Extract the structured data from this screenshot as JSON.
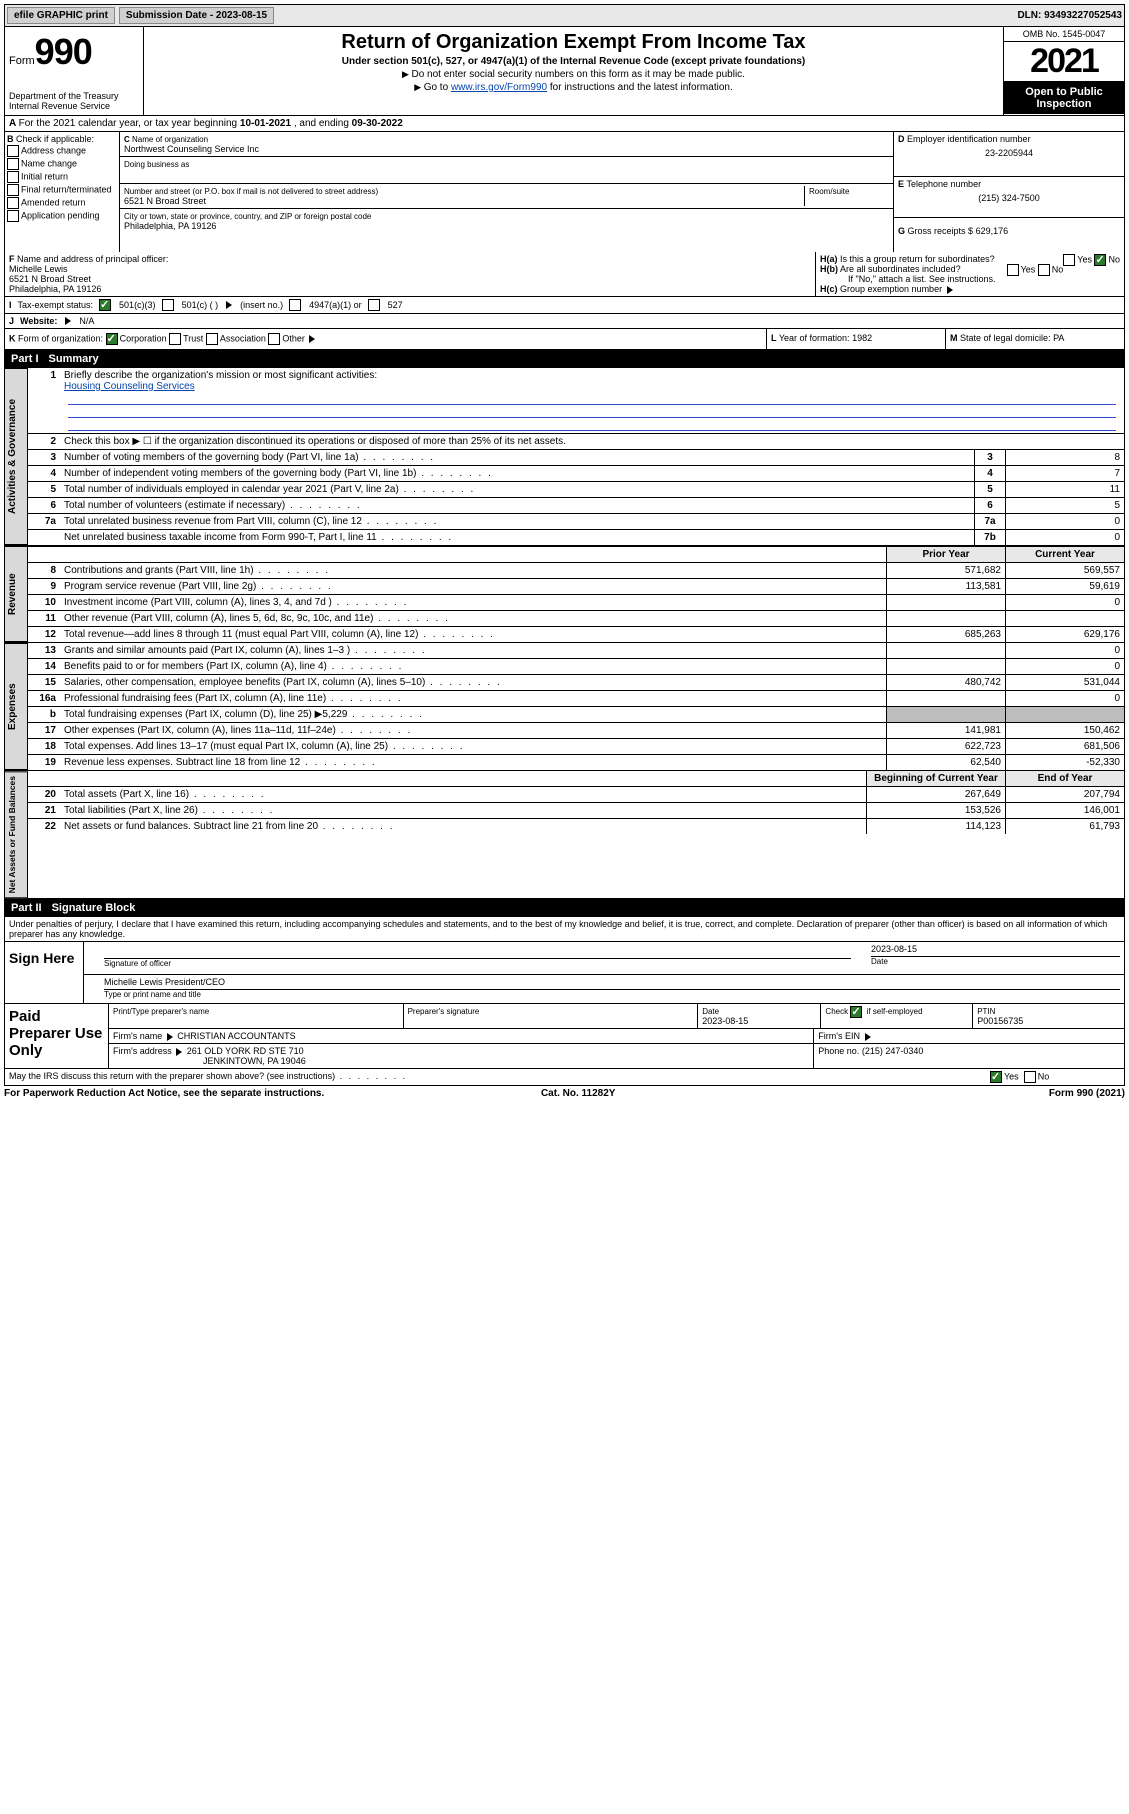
{
  "topbar": {
    "efile": "efile GRAPHIC print",
    "submission_label": "Submission Date - ",
    "submission_date": "2023-08-15",
    "dln_label": "DLN: ",
    "dln": "93493227052543"
  },
  "header": {
    "form_word": "Form",
    "form_num": "990",
    "dept": "Department of the Treasury\nInternal Revenue Service",
    "title": "Return of Organization Exempt From Income Tax",
    "sub": "Under section 501(c), 527, or 4947(a)(1) of the Internal Revenue Code (except private foundations)",
    "note1": "Do not enter social security numbers on this form as it may be made public.",
    "note2_pre": "Go to ",
    "note2_link": "www.irs.gov/Form990",
    "note2_post": " for instructions and the latest information.",
    "omb": "OMB No. 1545-0047",
    "year": "2021",
    "inspect": "Open to Public Inspection"
  },
  "A": {
    "text_pre": "For the 2021 calendar year, or tax year beginning ",
    "begin": "10-01-2021",
    "mid": " , and ending ",
    "end": "09-30-2022"
  },
  "B": {
    "label": "Check if applicable:",
    "opts": [
      "Address change",
      "Name change",
      "Initial return",
      "Final return/terminated",
      "Amended return",
      "Application pending"
    ]
  },
  "C": {
    "name_label": "Name of organization",
    "name": "Northwest Counseling Service Inc",
    "dba_label": "Doing business as",
    "dba": "",
    "street_label": "Number and street (or P.O. box if mail is not delivered to street address)",
    "room_label": "Room/suite",
    "street": "6521 N Broad Street",
    "city_label": "City or town, state or province, country, and ZIP or foreign postal code",
    "city": "Philadelphia, PA  19126"
  },
  "D": {
    "label": "Employer identification number",
    "value": "23-2205944"
  },
  "E": {
    "label": "Telephone number",
    "value": "(215) 324-7500"
  },
  "G": {
    "label": "Gross receipts $",
    "value": "629,176"
  },
  "F": {
    "label": "Name and address of principal officer:",
    "name": "Michelle Lewis",
    "addr1": "6521 N Broad Street",
    "addr2": "Philadelphia, PA  19126"
  },
  "H": {
    "a": "Is this a group return for subordinates?",
    "a_yes": "Yes",
    "a_no": "No",
    "a_checked": "No",
    "b": "Are all subordinates included?",
    "b_note": "If \"No,\" attach a list. See instructions.",
    "c": "Group exemption number"
  },
  "I": {
    "label": "Tax-exempt status:",
    "o1": "501(c)(3)",
    "o2": "501(c) (   )",
    "o2b": "(insert no.)",
    "o3": "4947(a)(1) or",
    "o4": "527"
  },
  "J": {
    "label": "Website:",
    "value": "N/A"
  },
  "K": {
    "label": "Form of organization:",
    "o1": "Corporation",
    "o2": "Trust",
    "o3": "Association",
    "o4": "Other"
  },
  "L": {
    "label": "Year of formation:",
    "value": "1982"
  },
  "M": {
    "label": "State of legal domicile:",
    "value": "PA"
  },
  "part1": {
    "bar_label": "Part I",
    "bar_title": "Summary",
    "l1_label": "Briefly describe the organization's mission or most significant activities:",
    "l1_text": "Housing Counseling Services",
    "l2": "Check this box ▶ ☐  if the organization discontinued its operations or disposed of more than 25% of its net assets.",
    "rows_gov": [
      {
        "n": "3",
        "t": "Number of voting members of the governing body (Part VI, line 1a)",
        "box": "3",
        "v": "8"
      },
      {
        "n": "4",
        "t": "Number of independent voting members of the governing body (Part VI, line 1b)",
        "box": "4",
        "v": "7"
      },
      {
        "n": "5",
        "t": "Total number of individuals employed in calendar year 2021 (Part V, line 2a)",
        "box": "5",
        "v": "11"
      },
      {
        "n": "6",
        "t": "Total number of volunteers (estimate if necessary)",
        "box": "6",
        "v": "5"
      },
      {
        "n": "7a",
        "t": "Total unrelated business revenue from Part VIII, column (C), line 12",
        "box": "7a",
        "v": "0"
      },
      {
        "n": "",
        "t": "Net unrelated business taxable income from Form 990-T, Part I, line 11",
        "box": "7b",
        "v": "0"
      }
    ],
    "col_prior": "Prior Year",
    "col_curr": "Current Year",
    "rows_rev": [
      {
        "n": "8",
        "t": "Contributions and grants (Part VIII, line 1h)",
        "p": "571,682",
        "c": "569,557"
      },
      {
        "n": "9",
        "t": "Program service revenue (Part VIII, line 2g)",
        "p": "113,581",
        "c": "59,619"
      },
      {
        "n": "10",
        "t": "Investment income (Part VIII, column (A), lines 3, 4, and 7d )",
        "p": "",
        "c": "0"
      },
      {
        "n": "11",
        "t": "Other revenue (Part VIII, column (A), lines 5, 6d, 8c, 9c, 10c, and 11e)",
        "p": "",
        "c": ""
      },
      {
        "n": "12",
        "t": "Total revenue—add lines 8 through 11 (must equal Part VIII, column (A), line 12)",
        "p": "685,263",
        "c": "629,176"
      }
    ],
    "rows_exp": [
      {
        "n": "13",
        "t": "Grants and similar amounts paid (Part IX, column (A), lines 1–3 )",
        "p": "",
        "c": "0"
      },
      {
        "n": "14",
        "t": "Benefits paid to or for members (Part IX, column (A), line 4)",
        "p": "",
        "c": "0"
      },
      {
        "n": "15",
        "t": "Salaries, other compensation, employee benefits (Part IX, column (A), lines 5–10)",
        "p": "480,742",
        "c": "531,044"
      },
      {
        "n": "16a",
        "t": "Professional fundraising fees (Part IX, column (A), line 11e)",
        "p": "",
        "c": "0"
      },
      {
        "n": "b",
        "t": "Total fundraising expenses (Part IX, column (D), line 25) ▶5,229",
        "p": "",
        "c": "",
        "shade": true
      },
      {
        "n": "17",
        "t": "Other expenses (Part IX, column (A), lines 11a–11d, 11f–24e)",
        "p": "141,981",
        "c": "150,462"
      },
      {
        "n": "18",
        "t": "Total expenses. Add lines 13–17 (must equal Part IX, column (A), line 25)",
        "p": "622,723",
        "c": "681,506"
      },
      {
        "n": "19",
        "t": "Revenue less expenses. Subtract line 18 from line 12",
        "p": "62,540",
        "c": "-52,330"
      }
    ],
    "col_begin": "Beginning of Current Year",
    "col_end": "End of Year",
    "rows_net": [
      {
        "n": "20",
        "t": "Total assets (Part X, line 16)",
        "p": "267,649",
        "c": "207,794"
      },
      {
        "n": "21",
        "t": "Total liabilities (Part X, line 26)",
        "p": "153,526",
        "c": "146,001"
      },
      {
        "n": "22",
        "t": "Net assets or fund balances. Subtract line 21 from line 20",
        "p": "114,123",
        "c": "61,793"
      }
    ],
    "vtab_gov": "Activities & Governance",
    "vtab_rev": "Revenue",
    "vtab_exp": "Expenses",
    "vtab_net": "Net Assets or Fund Balances"
  },
  "part2": {
    "bar_label": "Part II",
    "bar_title": "Signature Block",
    "penalty": "Under penalties of perjury, I declare that I have examined this return, including accompanying schedules and statements, and to the best of my knowledge and belief, it is true, correct, and complete. Declaration of preparer (other than officer) is based on all information of which preparer has any knowledge.",
    "sign_here": "Sign Here",
    "sig_officer_lab": "Signature of officer",
    "sig_date_lab": "Date",
    "sig_date": "2023-08-15",
    "officer_name": "Michelle Lewis  President/CEO",
    "officer_name_lab": "Type or print name and title"
  },
  "paid": {
    "label": "Paid Preparer Use Only",
    "h1": "Print/Type preparer's name",
    "h2": "Preparer's signature",
    "h3": "Date",
    "h3v": "2023-08-15",
    "h4": "Check ☑ if self-employed",
    "h5": "PTIN",
    "h5v": "P00156735",
    "firm_name_lab": "Firm's name",
    "firm_name": "CHRISTIAN ACCOUNTANTS",
    "firm_ein_lab": "Firm's EIN",
    "firm_addr_lab": "Firm's address",
    "firm_addr1": "261 OLD YORK RD STE 710",
    "firm_addr2": "JENKINTOWN, PA  19046",
    "phone_lab": "Phone no.",
    "phone": "(215) 247-0340",
    "discuss": "May the IRS discuss this return with the preparer shown above? (see instructions)",
    "yes": "Yes",
    "no": "No"
  },
  "footer": {
    "left": "For Paperwork Reduction Act Notice, see the separate instructions.",
    "mid": "Cat. No. 11282Y",
    "right": "Form 990 (2021)"
  },
  "colors": {
    "link": "#0645ad",
    "shade": "#bdbdbd",
    "bar": "#000000",
    "check": "#2a7a2a",
    "bg": "#ffffff",
    "rule": "#2a4bcc",
    "grey": "#e8e8e8",
    "btn": "#d0d0d0"
  }
}
